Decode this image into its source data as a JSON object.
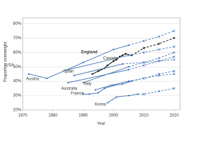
{
  "chart_data": {
    "type": "line",
    "x_label": "Year",
    "y_label": "Proportion overweight",
    "xlim": [
      1970,
      2022
    ],
    "xticks": [
      1970,
      1980,
      1990,
      2000,
      2010,
      2020
    ],
    "ylim": [
      20,
      84
    ],
    "yticks": [
      {
        "value": 20,
        "label": "20%"
      },
      {
        "value": 30,
        "label": "30%"
      },
      {
        "value": 40,
        "label": "40%"
      },
      {
        "value": 50,
        "label": "50%"
      },
      {
        "value": 60,
        "label": "60%"
      },
      {
        "value": 70,
        "label": "70%"
      },
      {
        "value": 80,
        "label": "80%"
      }
    ],
    "grid": true,
    "series": [
      {
        "name": "USA",
        "color": "#4a7ab8",
        "x": [
          1972,
          1978,
          1990,
          2000,
          2005
        ],
        "values": [
          45,
          42,
          53,
          62,
          65
        ],
        "projection_x": [
          2010,
          2015,
          2020
        ],
        "projection": [
          68,
          71,
          75
        ]
      },
      {
        "name": "England",
        "color": "#000000",
        "x": [
          1993,
          1995,
          1997,
          1998,
          2000,
          2001,
          2002,
          2003,
          2004,
          2006
        ],
        "values": [
          45,
          47,
          49,
          51,
          54,
          55,
          57,
          58,
          59,
          58
        ],
        "projection_x": [
          2010,
          2015,
          2020
        ],
        "projection": [
          63,
          66,
          70
        ]
      },
      {
        "name": "Canada",
        "color": "#4a7ab8",
        "x": [
          1985,
          2005
        ],
        "values": [
          48,
          58
        ],
        "projection_x": [
          2010,
          2015,
          2020
        ],
        "projection": [
          60,
          62,
          64
        ]
      },
      {
        "name": "Spain",
        "color": "#4a7ab8",
        "x": [
          1987,
          2003
        ],
        "values": [
          44,
          52
        ],
        "projection_x": [
          2010,
          2015,
          2020
        ],
        "projection": [
          53,
          54,
          55
        ]
      },
      {
        "name": "Austria",
        "color": "#4a7ab8",
        "x": [
          1985,
          2005
        ],
        "values": [
          39,
          48
        ],
        "projection_x": [
          2010,
          2015,
          2020
        ],
        "projection": [
          51,
          54,
          57
        ]
      },
      {
        "name": "Australia",
        "color": "#4a7ab8",
        "x": [
          1990,
          2005
        ],
        "values": [
          39,
          50
        ],
        "projection_x": [
          2010,
          2015,
          2020
        ],
        "projection": [
          53,
          56,
          60
        ]
      },
      {
        "name": "Italy",
        "color": "#4a7ab8",
        "x": [
          1994,
          1999,
          2005
        ],
        "values": [
          34,
          37,
          40
        ],
        "projection_x": [
          2010,
          2015,
          2020
        ],
        "projection": [
          42,
          44,
          45
        ]
      },
      {
        "name": "France",
        "color": "#4a7ab8",
        "x": [
          1990,
          1992,
          1995,
          1997,
          2000,
          2003,
          2006
        ],
        "values": [
          31,
          31,
          32,
          35,
          37,
          38,
          40
        ],
        "projection_x": [
          2010,
          2015,
          2020
        ],
        "projection": [
          42,
          45,
          47
        ]
      },
      {
        "name": "Korea",
        "color": "#4a7ab8",
        "x": [
          1998,
          2001,
          2005,
          2008
        ],
        "values": [
          25,
          29,
          30,
          31
        ],
        "projection_x": [
          2010,
          2015,
          2020
        ],
        "projection": [
          31,
          33,
          35
        ]
      }
    ]
  }
}
